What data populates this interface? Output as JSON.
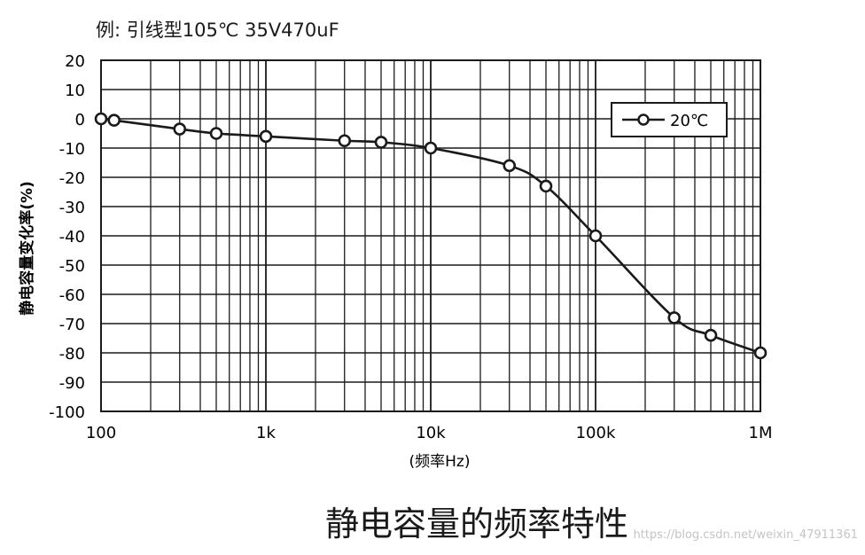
{
  "header": {
    "title": "例: 引线型105℃ 35V470uF"
  },
  "caption": "静电容量的频率特性",
  "watermark": "https://blog.csdn.net/weixin_47911361",
  "chart_data": {
    "type": "line",
    "title": "例: 引线型105℃ 35V470uF",
    "xlabel": "(频率Hz)",
    "ylabel": "静电容量变化率(%)",
    "x_scale": "log",
    "xlim": [
      100,
      1000000
    ],
    "ylim": [
      -100,
      20
    ],
    "x_ticks": [
      100,
      1000,
      10000,
      100000,
      1000000
    ],
    "x_tick_labels": [
      "100",
      "1k",
      "10k",
      "100k",
      "1M"
    ],
    "y_ticks": [
      20,
      10,
      0,
      -10,
      -20,
      -30,
      -40,
      -50,
      -60,
      -70,
      -80,
      -90,
      -100
    ],
    "y_tick_labels": [
      "20",
      "10",
      "0",
      "-10",
      "-20",
      "-30",
      "-40",
      "-50",
      "-60",
      "-70",
      "-80",
      "-90",
      "-100"
    ],
    "grid": true,
    "legend_position": "top-right",
    "series": [
      {
        "name": "20℃",
        "x": [
          100,
          120,
          300,
          500,
          1000,
          3000,
          5000,
          10000,
          30000,
          50000,
          100000,
          300000,
          500000,
          1000000
        ],
        "y": [
          0,
          -0.5,
          -3.5,
          -5,
          -6,
          -7.5,
          -8,
          -10,
          -16,
          -23,
          -40,
          -68,
          -74,
          -80
        ]
      }
    ],
    "colors": {
      "line": "#1a1a1a",
      "marker_fill": "#ffffff",
      "grid": "#1a1a1a"
    }
  }
}
